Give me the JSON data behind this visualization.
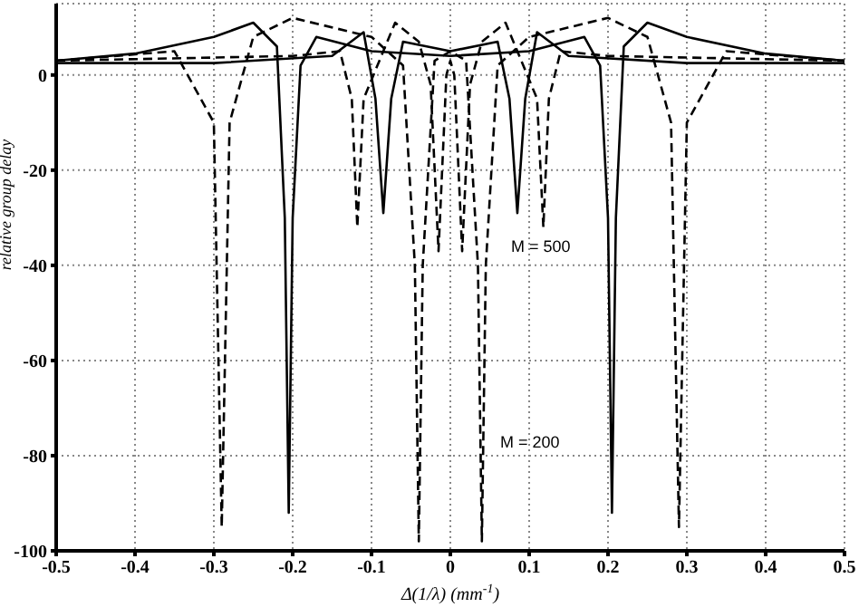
{
  "chart_data": {
    "type": "line",
    "xlabel": "Δ(1/λ) (mm$^{-1}$)",
    "ylabel": "relative group delay",
    "xlim": [
      -0.5,
      0.5
    ],
    "xticks": [
      -0.5,
      -0.4,
      -0.3,
      -0.2,
      -0.1,
      0,
      0.1,
      0.2,
      0.3,
      0.4,
      0.5
    ],
    "ylim": [
      -100,
      15
    ],
    "yticks": [
      -100,
      -80,
      -60,
      -40,
      -20,
      0
    ],
    "grid": true,
    "marker": "none",
    "series": [
      {
        "color": "#000000",
        "line_style": "solid",
        "x": [
          -0.5,
          -0.4,
          -0.3,
          -0.25,
          -0.22,
          -0.21,
          -0.205,
          -0.2,
          -0.19,
          -0.17,
          -0.1,
          0,
          0.1,
          0.17,
          0.19,
          0.2,
          0.205,
          0.21,
          0.22,
          0.25,
          0.3,
          0.4,
          0.5
        ],
        "values": [
          3,
          4.5,
          8,
          11,
          6,
          -30,
          -92,
          -30,
          2,
          8,
          5,
          4,
          5,
          8,
          2,
          -30,
          -92,
          -30,
          6,
          11,
          8,
          4.5,
          3
        ]
      },
      {
        "color": "#000000",
        "line_style": "solid",
        "x": [
          -0.5,
          -0.3,
          -0.15,
          -0.11,
          -0.095,
          -0.085,
          -0.075,
          -0.06,
          0,
          0.06,
          0.075,
          0.085,
          0.095,
          0.11,
          0.15,
          0.3,
          0.5
        ],
        "values": [
          2.5,
          2.5,
          4,
          9,
          -5,
          -29,
          -5,
          7,
          5,
          7,
          -5,
          -29,
          -5,
          9,
          4,
          2.5,
          2.5
        ]
      },
      {
        "color": "#000000",
        "line_style": "dashed",
        "x": [
          -0.5,
          -0.35,
          -0.3,
          -0.29,
          -0.28,
          -0.25,
          -0.2,
          -0.1,
          -0.06,
          -0.045,
          -0.04,
          -0.035,
          -0.02,
          0,
          0.02,
          0.035,
          0.04,
          0.045,
          0.06,
          0.1,
          0.2,
          0.25,
          0.28,
          0.29,
          0.3,
          0.35,
          0.5
        ],
        "values": [
          3,
          5,
          -10,
          -95,
          -10,
          8,
          12,
          8,
          2,
          -40,
          -98,
          -40,
          3,
          5,
          3,
          -40,
          -98,
          -40,
          2,
          8,
          12,
          8,
          -10,
          -95,
          -10,
          5,
          3
        ]
      },
      {
        "color": "#000000",
        "line_style": "dashed",
        "x": [
          -0.5,
          -0.2,
          -0.14,
          -0.125,
          -0.118,
          -0.11,
          -0.07,
          -0.04,
          -0.025,
          -0.015,
          -0.005,
          0,
          0.005,
          0.015,
          0.025,
          0.04,
          0.07,
          0.11,
          0.118,
          0.125,
          0.14,
          0.2,
          0.5
        ],
        "values": [
          3,
          4,
          5,
          -5,
          -32,
          -5,
          11,
          7,
          -2,
          -37,
          0,
          3,
          0,
          -37,
          -2,
          7,
          11,
          -5,
          -32,
          -5,
          5,
          4,
          3
        ]
      }
    ],
    "annotations": [
      "M = 500",
      "M = 200"
    ]
  }
}
